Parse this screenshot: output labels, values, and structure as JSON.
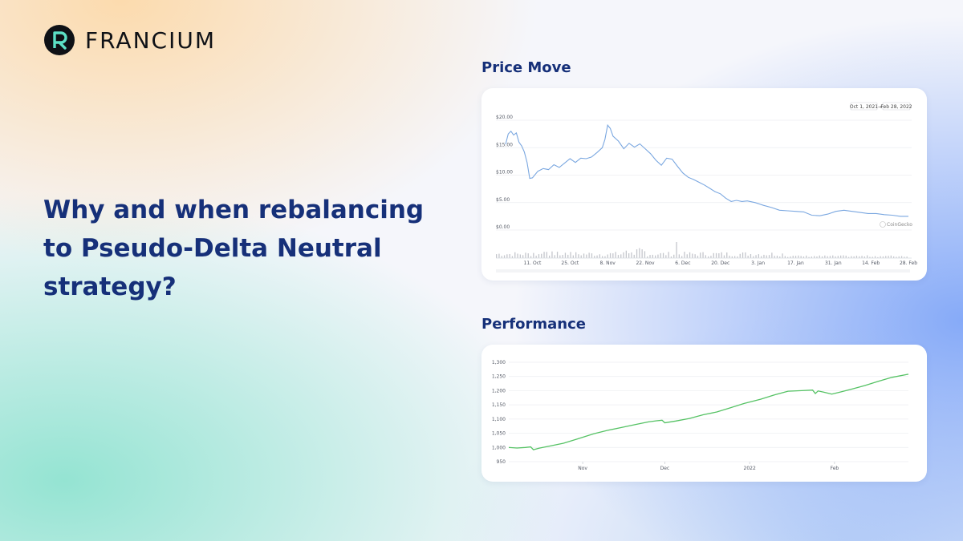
{
  "brand": {
    "name": "FRANCIUM",
    "logo_icon": "francium-r-icon"
  },
  "headline": "Why and when rebalancing to Pseudo-Delta Neutral strategy?",
  "sections": {
    "price_title": "Price Move",
    "performance_title": "Performance"
  },
  "colors": {
    "title": "#163079",
    "price_line": "#7aa7e0",
    "performance_line": "#55c264",
    "volume_bar": "#c4c6cc"
  },
  "chart_data": [
    {
      "type": "line",
      "name": "price-move",
      "date_range": {
        "from": "Oct 1, 2021",
        "to": "Feb 28, 2022"
      },
      "attribution": "CoinGecko",
      "y_ticks": [
        {
          "value": 20,
          "label": "$20.00"
        },
        {
          "value": 15,
          "label": "$15.00"
        },
        {
          "value": 10,
          "label": "$10.00"
        },
        {
          "value": 5,
          "label": "$5.00"
        },
        {
          "value": 0,
          "label": "$0.00"
        }
      ],
      "ylim": [
        0,
        20
      ],
      "x_range": [
        "2021-10-01",
        "2022-02-28"
      ],
      "x_ticks": [
        {
          "date": "2021-10-11",
          "label": "11. Oct"
        },
        {
          "date": "2021-10-25",
          "label": "25. Oct"
        },
        {
          "date": "2021-11-08",
          "label": "8. Nov"
        },
        {
          "date": "2021-11-22",
          "label": "22. Nov"
        },
        {
          "date": "2021-12-06",
          "label": "6. Dec"
        },
        {
          "date": "2021-12-20",
          "label": "20. Dec"
        },
        {
          "date": "2022-01-03",
          "label": "3. Jan"
        },
        {
          "date": "2022-01-17",
          "label": "17. Jan"
        },
        {
          "date": "2022-01-31",
          "label": "31. Jan"
        },
        {
          "date": "2022-02-14",
          "label": "14. Feb"
        },
        {
          "date": "2022-02-28",
          "label": "28. Feb"
        }
      ],
      "grid": true,
      "series": [
        {
          "x": [
            "2021-10-01",
            "2021-10-02",
            "2021-10-03",
            "2021-10-04",
            "2021-10-05",
            "2021-10-06",
            "2021-10-07",
            "2021-10-08",
            "2021-10-09",
            "2021-10-10",
            "2021-10-11",
            "2021-10-13",
            "2021-10-15",
            "2021-10-17",
            "2021-10-19",
            "2021-10-21",
            "2021-10-23",
            "2021-10-25",
            "2021-10-27",
            "2021-10-29",
            "2021-10-31",
            "2021-11-02",
            "2021-11-04",
            "2021-11-06",
            "2021-11-07",
            "2021-11-08",
            "2021-11-09",
            "2021-11-10",
            "2021-11-12",
            "2021-11-14",
            "2021-11-16",
            "2021-11-18",
            "2021-11-20",
            "2021-11-22",
            "2021-11-24",
            "2021-11-26",
            "2021-11-28",
            "2021-11-30",
            "2021-12-02",
            "2021-12-04",
            "2021-12-06",
            "2021-12-08",
            "2021-12-10",
            "2021-12-12",
            "2021-12-14",
            "2021-12-16",
            "2021-12-18",
            "2021-12-20",
            "2021-12-22",
            "2021-12-24",
            "2021-12-26",
            "2021-12-28",
            "2021-12-30",
            "2022-01-02",
            "2022-01-05",
            "2022-01-08",
            "2022-01-11",
            "2022-01-14",
            "2022-01-17",
            "2022-01-20",
            "2022-01-23",
            "2022-01-26",
            "2022-01-29",
            "2022-02-01",
            "2022-02-04",
            "2022-02-07",
            "2022-02-10",
            "2022-02-13",
            "2022-02-16",
            "2022-02-19",
            "2022-02-22",
            "2022-02-25",
            "2022-02-28"
          ],
          "y": [
            15.6,
            17.5,
            18.0,
            17.3,
            17.7,
            16.0,
            15.3,
            14.2,
            12.3,
            9.4,
            9.5,
            10.7,
            11.2,
            11.0,
            11.9,
            11.4,
            12.2,
            13.0,
            12.3,
            13.1,
            13.0,
            13.3,
            14.1,
            15.0,
            16.5,
            19.1,
            18.5,
            17.1,
            16.2,
            14.8,
            15.8,
            15.1,
            15.7,
            14.8,
            13.9,
            12.7,
            11.8,
            13.1,
            12.9,
            11.6,
            10.4,
            9.6,
            9.2,
            8.7,
            8.2,
            7.6,
            7.0,
            6.6,
            5.8,
            5.2,
            5.4,
            5.2,
            5.3,
            5.0,
            4.5,
            4.1,
            3.6,
            3.5,
            3.4,
            3.3,
            2.7,
            2.6,
            2.9,
            3.4,
            3.6,
            3.4,
            3.2,
            3.0,
            3.0,
            2.8,
            2.7,
            2.5,
            2.5
          ]
        }
      ]
    },
    {
      "type": "line",
      "name": "performance",
      "y_ticks": [
        {
          "value": 1300,
          "label": "1,300"
        },
        {
          "value": 1250,
          "label": "1,250"
        },
        {
          "value": 1200,
          "label": "1,200"
        },
        {
          "value": 1150,
          "label": "1,150"
        },
        {
          "value": 1100,
          "label": "1,100"
        },
        {
          "value": 1050,
          "label": "1,050"
        },
        {
          "value": 1000,
          "label": "1,000"
        },
        {
          "value": 950,
          "label": "950"
        }
      ],
      "ylim": [
        950,
        1300
      ],
      "x_range": [
        "2021-10-05",
        "2022-02-28"
      ],
      "x_ticks": [
        {
          "date": "2021-11-01",
          "label": "Nov"
        },
        {
          "date": "2021-12-01",
          "label": "Dec"
        },
        {
          "date": "2022-01-01",
          "label": "2022"
        },
        {
          "date": "2022-02-01",
          "label": "Feb"
        }
      ],
      "grid": true,
      "series": [
        {
          "x": [
            "2021-10-05",
            "2021-10-08",
            "2021-10-11",
            "2021-10-13",
            "2021-10-14",
            "2021-10-16",
            "2021-10-20",
            "2021-10-25",
            "2021-10-30",
            "2021-11-05",
            "2021-11-10",
            "2021-11-15",
            "2021-11-20",
            "2021-11-25",
            "2021-11-28",
            "2021-11-30",
            "2021-12-01",
            "2021-12-05",
            "2021-12-10",
            "2021-12-15",
            "2021-12-20",
            "2021-12-25",
            "2021-12-30",
            "2022-01-05",
            "2022-01-10",
            "2022-01-15",
            "2022-01-20",
            "2022-01-24",
            "2022-01-25",
            "2022-01-26",
            "2022-01-28",
            "2022-01-31",
            "2022-02-03",
            "2022-02-07",
            "2022-02-12",
            "2022-02-17",
            "2022-02-22",
            "2022-02-28"
          ],
          "y": [
            1000,
            998,
            1000,
            1002,
            992,
            997,
            1005,
            1015,
            1030,
            1048,
            1060,
            1070,
            1080,
            1090,
            1094,
            1096,
            1087,
            1093,
            1102,
            1115,
            1125,
            1140,
            1155,
            1170,
            1185,
            1198,
            1200,
            1202,
            1190,
            1199,
            1195,
            1188,
            1195,
            1205,
            1218,
            1233,
            1247,
            1258
          ]
        }
      ]
    }
  ]
}
